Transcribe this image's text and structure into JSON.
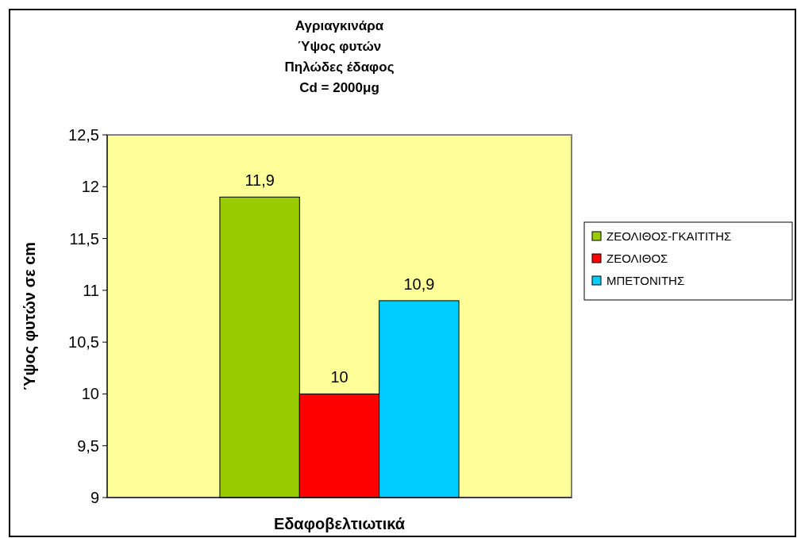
{
  "chart_data": {
    "type": "bar",
    "title": "Αγριαγκινάρα\nΎψος φυτών\nΠηλώδες έδαφος\nCd = 2000μg",
    "xlabel": "Εδαφοβελτιωτικά",
    "ylabel": "Ύψος φυτών σε cm",
    "categories": [
      null
    ],
    "series": [
      {
        "name": "ΖΕΟΛΙΘΟΣ-ΓΚΑΙΤΙΤΗΣ",
        "color": "#99cc00",
        "values": [
          11.9
        ],
        "value_labels": [
          "11,9"
        ]
      },
      {
        "name": "ΖΕΟΛΙΘΟΣ",
        "color": "#ff0000",
        "values": [
          10
        ],
        "value_labels": [
          "10"
        ]
      },
      {
        "name": "ΜΠΕΤΟΝΙΤΗΣ",
        "color": "#00ccff",
        "values": [
          10.9
        ],
        "value_labels": [
          "10,9"
        ]
      }
    ],
    "ylim": [
      9,
      12.5
    ],
    "yticks": [
      9,
      {
        "value": 9.5,
        "label": "9,5"
      },
      10,
      {
        "value": 10.5,
        "label": "10,5"
      },
      11,
      {
        "value": 11.5,
        "label": "11,5"
      },
      12,
      {
        "value": 12.5,
        "label": "12,5"
      }
    ],
    "grid": false,
    "legend": "right"
  }
}
